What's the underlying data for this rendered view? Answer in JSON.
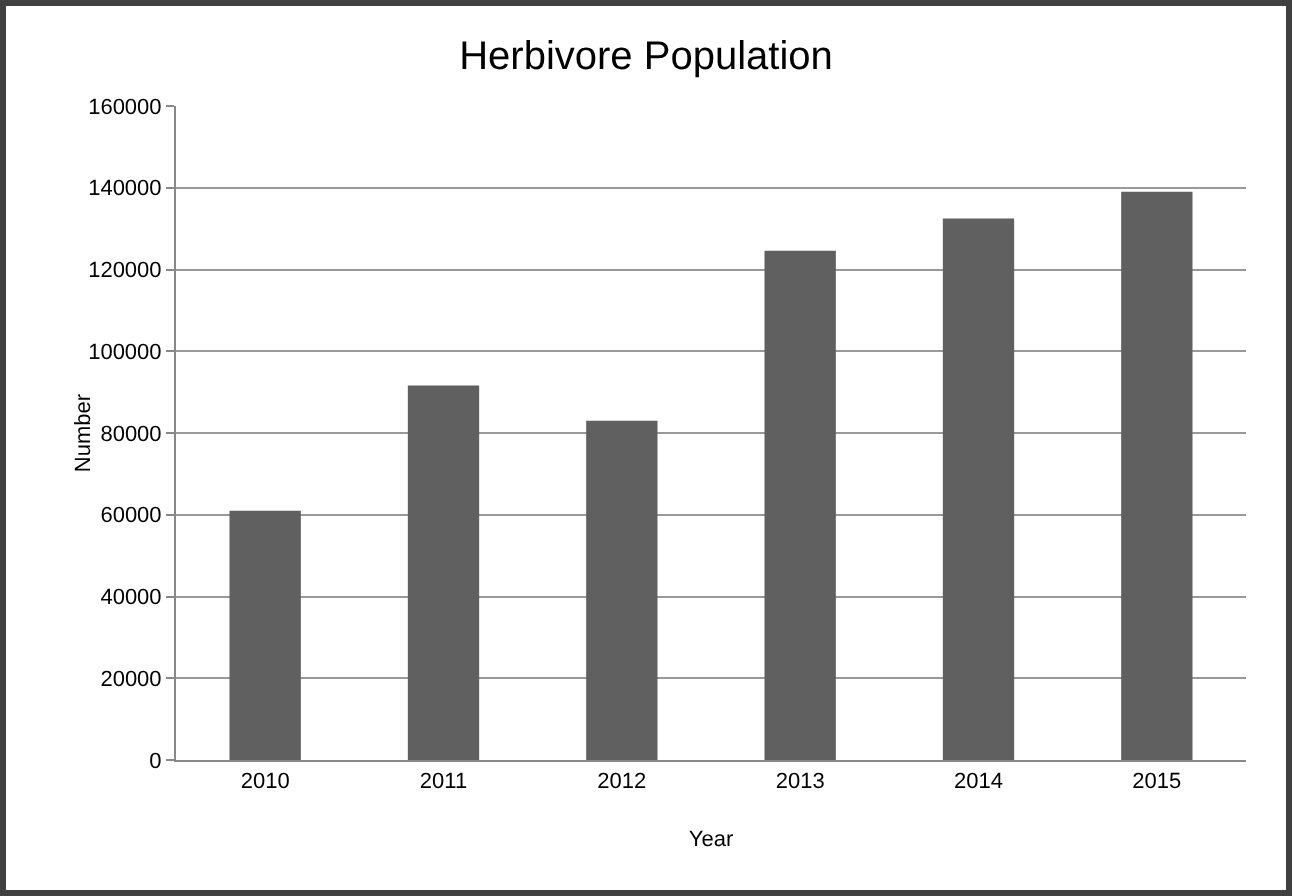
{
  "chart_data": {
    "type": "bar",
    "title": "Herbivore Population",
    "xlabel": "Year",
    "ylabel": "Number",
    "categories": [
      "2010",
      "2011",
      "2012",
      "2013",
      "2014",
      "2015"
    ],
    "values": [
      61000,
      91600,
      83000,
      124600,
      132500,
      139000
    ],
    "color": "#606060",
    "ylim": [
      0,
      160000
    ],
    "yticks": [
      0,
      20000,
      40000,
      60000,
      80000,
      100000,
      120000,
      140000,
      160000
    ],
    "grid": "y"
  }
}
